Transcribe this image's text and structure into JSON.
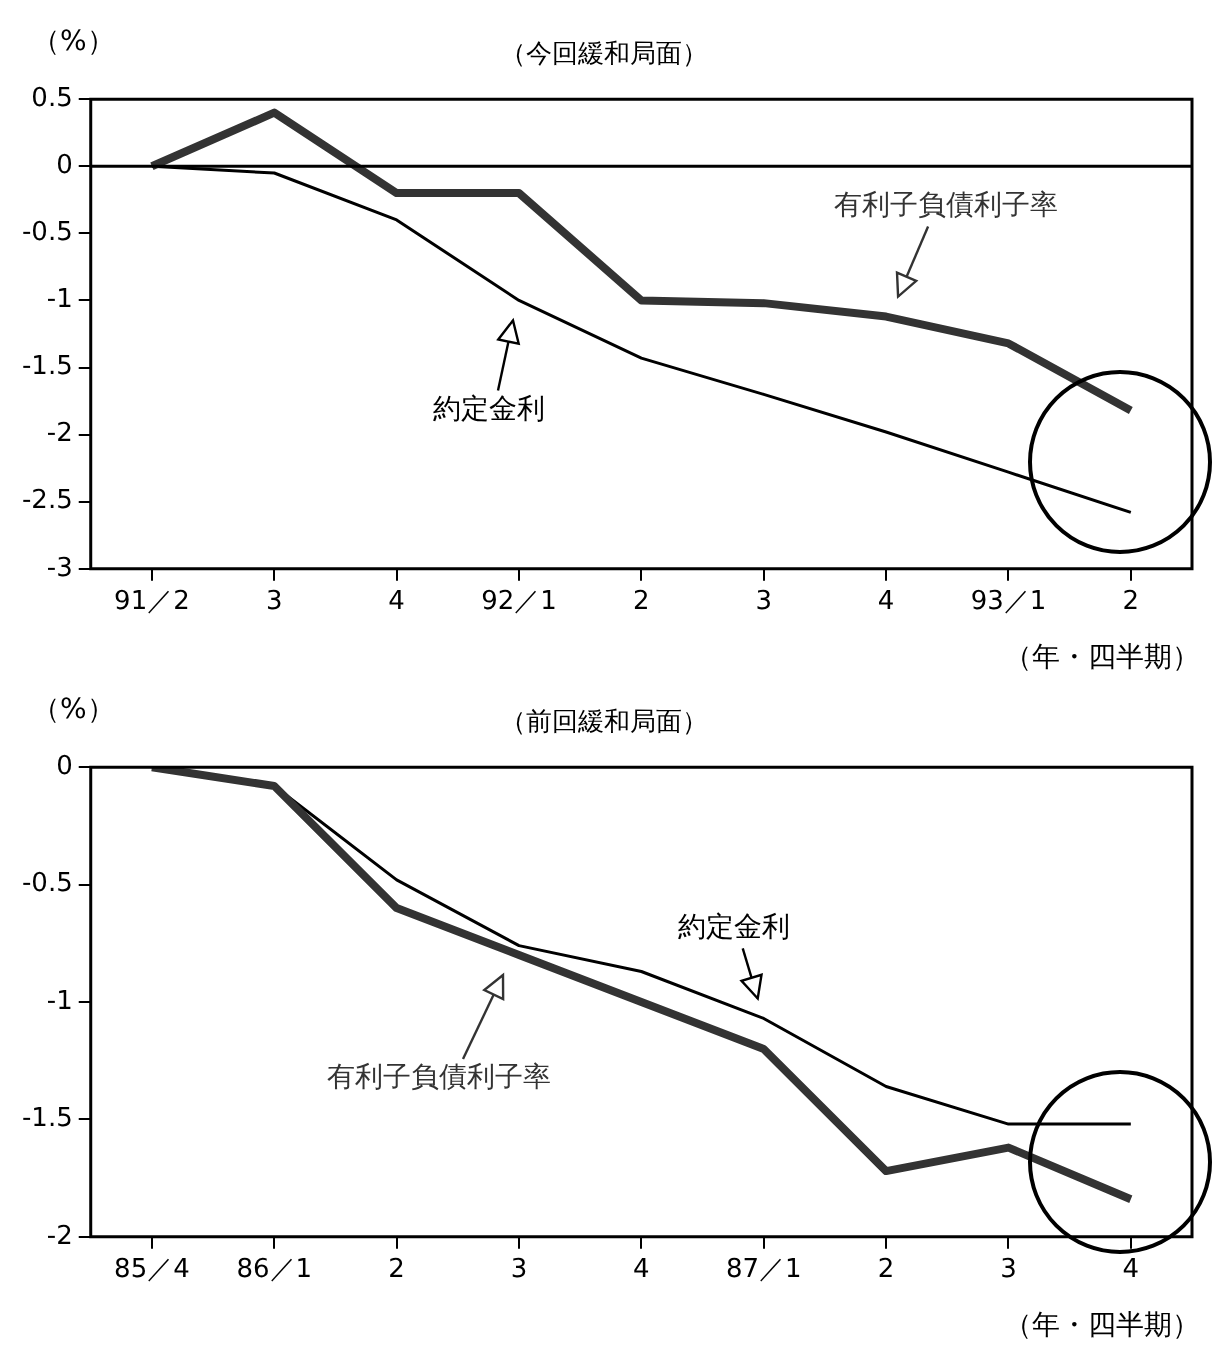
{
  "chart_data": [
    {
      "type": "line",
      "title": "（今回緩和局面）",
      "ylabel": "（%）",
      "xlabel": "（年・四半期）",
      "categories": [
        "91／2",
        "3",
        "4",
        "92／1",
        "2",
        "3",
        "4",
        "93／1",
        "2"
      ],
      "series": [
        {
          "name": "有利子負債利子率",
          "color": "#333333",
          "values": [
            0,
            0.4,
            -0.2,
            -0.2,
            -1.0,
            -1.02,
            -1.12,
            -1.32,
            -1.82
          ]
        },
        {
          "name": "約定金利",
          "color": "#000000",
          "values": [
            0,
            -0.05,
            -0.4,
            -1.0,
            -1.43,
            -1.7,
            -1.98,
            -2.28,
            -2.58
          ]
        }
      ],
      "ylim": [
        -3,
        0.5
      ],
      "yticks": [
        0.5,
        0,
        -0.5,
        -1,
        -1.5,
        -2,
        -2.5,
        -3
      ],
      "ref_lines": [
        {
          "axis": "y",
          "value": 0,
          "color": "#000000"
        }
      ],
      "grid": false,
      "legend": false,
      "marker": "none",
      "line_style": "solid"
    },
    {
      "type": "line",
      "title": "（前回緩和局面）",
      "ylabel": "（%）",
      "xlabel": "（年・四半期）",
      "categories": [
        "85／4",
        "86／1",
        "2",
        "3",
        "4",
        "87／1",
        "2",
        "3",
        "4"
      ],
      "series": [
        {
          "name": "有利子負債利子率",
          "color": "#333333",
          "values": [
            0,
            -0.08,
            -0.6,
            -0.8,
            -1.0,
            -1.2,
            -1.72,
            -1.62,
            -1.84
          ]
        },
        {
          "name": "約定金利",
          "color": "#000000",
          "values": [
            0,
            -0.08,
            -0.48,
            -0.76,
            -0.87,
            -1.07,
            -1.36,
            -1.52,
            -1.52
          ]
        }
      ],
      "ylim": [
        -2,
        0
      ],
      "yticks": [
        0,
        -0.5,
        -1,
        -1.5,
        -2
      ],
      "grid": false,
      "legend": false,
      "marker": "none",
      "line_style": "solid"
    }
  ]
}
